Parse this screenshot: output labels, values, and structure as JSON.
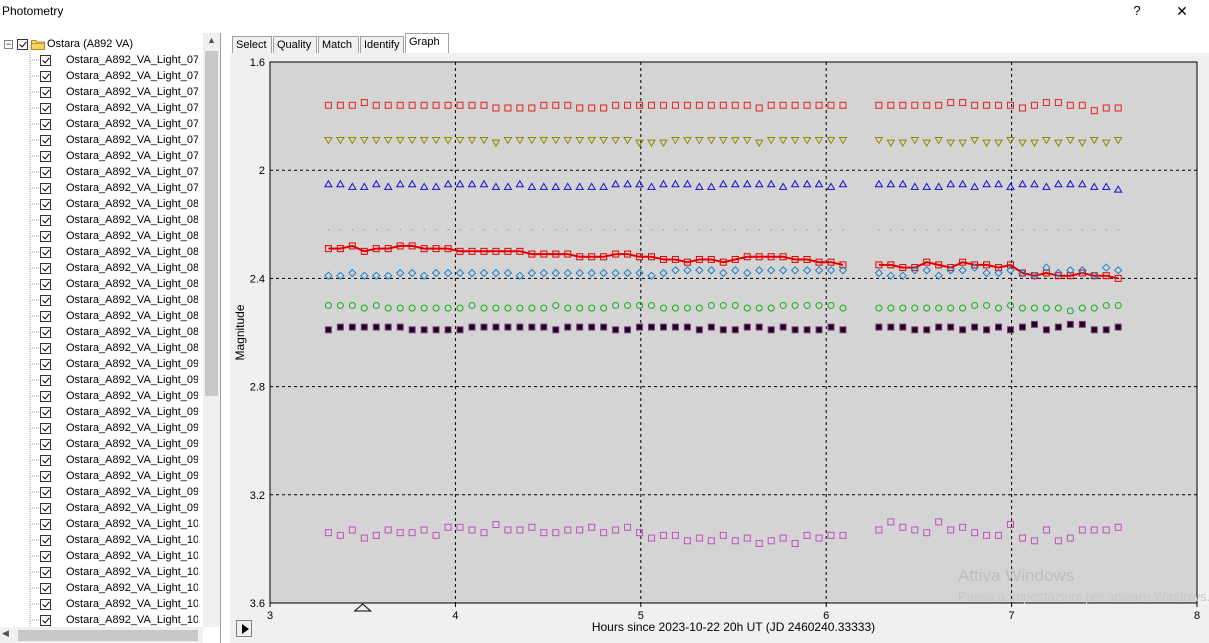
{
  "window": {
    "title": "Photometry",
    "help_label": "?",
    "close_label": "✕"
  },
  "tree": {
    "root_label": "Ostara (A892 VA)",
    "root_expander": "−",
    "items": [
      "Ostara_A892_VA_Light_07",
      "Ostara_A892_VA_Light_07",
      "Ostara_A892_VA_Light_07",
      "Ostara_A892_VA_Light_07",
      "Ostara_A892_VA_Light_07",
      "Ostara_A892_VA_Light_07",
      "Ostara_A892_VA_Light_07",
      "Ostara_A892_VA_Light_07",
      "Ostara_A892_VA_Light_07",
      "Ostara_A892_VA_Light_08",
      "Ostara_A892_VA_Light_08",
      "Ostara_A892_VA_Light_08",
      "Ostara_A892_VA_Light_08",
      "Ostara_A892_VA_Light_08",
      "Ostara_A892_VA_Light_08",
      "Ostara_A892_VA_Light_08",
      "Ostara_A892_VA_Light_08",
      "Ostara_A892_VA_Light_08",
      "Ostara_A892_VA_Light_08",
      "Ostara_A892_VA_Light_09",
      "Ostara_A892_VA_Light_09",
      "Ostara_A892_VA_Light_09",
      "Ostara_A892_VA_Light_09",
      "Ostara_A892_VA_Light_09",
      "Ostara_A892_VA_Light_09",
      "Ostara_A892_VA_Light_09",
      "Ostara_A892_VA_Light_09",
      "Ostara_A892_VA_Light_09",
      "Ostara_A892_VA_Light_09",
      "Ostara_A892_VA_Light_10",
      "Ostara_A892_VA_Light_10",
      "Ostara_A892_VA_Light_10",
      "Ostara_A892_VA_Light_10",
      "Ostara_A892_VA_Light_10",
      "Ostara_A892_VA_Light_10",
      "Ostara_A892_VA_Light_10",
      "Ostara_A892_VA_Light_10"
    ]
  },
  "tabs": [
    "Select",
    "Quality",
    "Match",
    "Identify",
    "Graph"
  ],
  "active_tab": "Graph",
  "watermark": {
    "line1": "Attiva Windows",
    "line2": "Passa a Impostazioni per attivare Windows."
  },
  "colors": {
    "plot_bg": "#d4d4d4",
    "target": "#e00000",
    "comp_red": "#e8201e",
    "comp_olive": "#8a8a00",
    "comp_blue": "#1010d0",
    "comp_cyan": "#2080c8",
    "comp_green": "#10b010",
    "comp_black": "#200020",
    "comp_violet": "#c050c0"
  },
  "chart_data": {
    "type": "scatter",
    "title": "",
    "xlabel": "Hours since 2023-10-22 20h UT (JD 2460240.33333)",
    "ylabel": "Magnitude",
    "xlim": [
      3,
      8
    ],
    "ylim": [
      1.6,
      3.6
    ],
    "y_inverted": true,
    "x_ticks": [
      "3",
      "4",
      "5",
      "6",
      "7",
      "8"
    ],
    "y_ticks": [
      "1.6",
      "2",
      "2.4",
      "2.8",
      "3.2",
      "3.6"
    ],
    "grid": true,
    "x_marker": 3.5,
    "series": [
      {
        "style": "red-square",
        "values": [
          1.76,
          1.76,
          1.76,
          1.75,
          1.76,
          1.76,
          1.76,
          1.76,
          1.76,
          1.76,
          1.76,
          1.76,
          1.76,
          1.76,
          1.77,
          1.77,
          1.77,
          1.77,
          1.76,
          1.76,
          1.76,
          1.77,
          1.77,
          1.77,
          1.76,
          1.76,
          1.76,
          1.76,
          1.76,
          1.76,
          1.76,
          1.76,
          1.76,
          1.76,
          1.76,
          1.76,
          1.77,
          1.76,
          1.76,
          1.76,
          1.76,
          1.76,
          1.76,
          1.76,
          null,
          null,
          1.76,
          1.76,
          1.76,
          1.76,
          1.76,
          1.76,
          1.75,
          1.75,
          1.76,
          1.76,
          1.76,
          1.76,
          1.77,
          1.76,
          1.75,
          1.75,
          1.76,
          1.76,
          1.78,
          1.77,
          1.77
        ]
      },
      {
        "style": "olive-triangle-down",
        "values": [
          1.89,
          1.89,
          1.89,
          1.89,
          1.89,
          1.89,
          1.89,
          1.89,
          1.89,
          1.89,
          1.89,
          1.89,
          1.89,
          1.89,
          1.9,
          1.89,
          1.89,
          1.89,
          1.89,
          1.89,
          1.89,
          1.89,
          1.89,
          1.89,
          1.89,
          1.89,
          1.9,
          1.9,
          1.9,
          1.89,
          1.89,
          1.89,
          1.89,
          1.89,
          1.89,
          1.89,
          1.9,
          1.89,
          1.89,
          1.89,
          1.89,
          1.89,
          1.89,
          1.89,
          null,
          null,
          1.89,
          1.9,
          1.9,
          1.89,
          1.9,
          1.89,
          1.9,
          1.9,
          1.89,
          1.9,
          1.9,
          1.89,
          1.9,
          1.9,
          1.89,
          1.9,
          1.89,
          1.9,
          1.89,
          1.9,
          1.89
        ]
      },
      {
        "style": "blue-triangle-up",
        "values": [
          2.05,
          2.05,
          2.06,
          2.06,
          2.05,
          2.06,
          2.05,
          2.05,
          2.06,
          2.06,
          2.05,
          2.05,
          2.05,
          2.05,
          2.06,
          2.06,
          2.05,
          2.06,
          2.06,
          2.06,
          2.06,
          2.06,
          2.06,
          2.06,
          2.05,
          2.05,
          2.05,
          2.06,
          2.05,
          2.05,
          2.05,
          2.06,
          2.06,
          2.05,
          2.05,
          2.05,
          2.05,
          2.05,
          2.06,
          2.05,
          2.05,
          2.05,
          2.06,
          2.05,
          null,
          null,
          2.05,
          2.05,
          2.05,
          2.06,
          2.06,
          2.06,
          2.05,
          2.05,
          2.06,
          2.05,
          2.05,
          2.06,
          2.05,
          2.05,
          2.06,
          2.05,
          2.05,
          2.05,
          2.06,
          2.06,
          2.07
        ]
      },
      {
        "style": "gray-dot",
        "values": [
          2.22,
          2.22,
          2.22,
          2.22,
          2.22,
          2.22,
          2.22,
          2.22,
          2.22,
          2.22,
          2.22,
          2.22,
          2.22,
          2.22,
          2.22,
          2.22,
          2.22,
          2.22,
          2.22,
          2.22,
          2.22,
          2.22,
          2.22,
          2.22,
          2.22,
          2.22,
          2.22,
          2.22,
          2.22,
          2.22,
          2.22,
          2.22,
          2.22,
          2.22,
          2.22,
          2.22,
          2.22,
          2.22,
          2.22,
          2.22,
          2.22,
          2.22,
          2.22,
          2.22,
          null,
          null,
          2.22,
          2.22,
          2.22,
          2.22,
          2.22,
          2.22,
          2.22,
          2.22,
          2.22,
          2.22,
          2.22,
          2.22,
          2.22,
          2.22,
          2.22,
          2.22,
          2.22,
          2.22,
          2.22,
          2.22,
          2.22
        ]
      },
      {
        "style": "target-red-line",
        "values": [
          2.29,
          2.29,
          2.28,
          2.3,
          2.29,
          2.29,
          2.28,
          2.28,
          2.29,
          2.29,
          2.29,
          2.3,
          2.3,
          2.3,
          2.3,
          2.3,
          2.3,
          2.31,
          2.31,
          2.31,
          2.31,
          2.32,
          2.32,
          2.32,
          2.31,
          2.31,
          2.32,
          2.32,
          2.33,
          2.33,
          2.34,
          2.33,
          2.33,
          2.34,
          2.33,
          2.32,
          2.32,
          2.32,
          2.32,
          2.33,
          2.33,
          2.34,
          2.34,
          2.35,
          null,
          null,
          2.35,
          2.35,
          2.36,
          2.36,
          2.34,
          2.35,
          2.36,
          2.34,
          2.35,
          2.35,
          2.36,
          2.35,
          2.38,
          2.39,
          2.38,
          2.39,
          2.39,
          2.38,
          2.39,
          2.39,
          2.4
        ]
      },
      {
        "style": "cyan-diamond",
        "values": [
          2.39,
          2.39,
          2.38,
          2.39,
          2.39,
          2.39,
          2.38,
          2.38,
          2.39,
          2.38,
          2.38,
          2.38,
          2.38,
          2.38,
          2.38,
          2.38,
          2.39,
          2.38,
          2.38,
          2.38,
          2.38,
          2.38,
          2.38,
          2.38,
          2.38,
          2.38,
          2.38,
          2.39,
          2.38,
          2.37,
          2.37,
          2.37,
          2.37,
          2.38,
          2.37,
          2.38,
          2.37,
          2.37,
          2.37,
          2.37,
          2.37,
          2.37,
          2.37,
          2.37,
          null,
          null,
          2.38,
          2.39,
          2.39,
          2.37,
          2.37,
          2.39,
          2.37,
          2.37,
          2.36,
          2.38,
          2.38,
          2.37,
          2.38,
          2.39,
          2.36,
          2.38,
          2.37,
          2.37,
          2.39,
          2.36,
          2.37
        ]
      },
      {
        "style": "green-circle",
        "values": [
          2.5,
          2.5,
          2.5,
          2.51,
          2.5,
          2.51,
          2.51,
          2.51,
          2.51,
          2.51,
          2.51,
          2.51,
          2.5,
          2.51,
          2.51,
          2.51,
          2.51,
          2.51,
          2.51,
          2.5,
          2.51,
          2.51,
          2.51,
          2.51,
          2.5,
          2.5,
          2.5,
          2.5,
          2.51,
          2.51,
          2.51,
          2.51,
          2.5,
          2.5,
          2.5,
          2.51,
          2.51,
          2.51,
          2.5,
          2.5,
          2.5,
          2.5,
          2.5,
          2.51,
          null,
          null,
          2.51,
          2.51,
          2.51,
          2.51,
          2.51,
          2.51,
          2.51,
          2.51,
          2.5,
          2.5,
          2.51,
          2.5,
          2.51,
          2.51,
          2.51,
          2.51,
          2.52,
          2.51,
          2.51,
          2.5,
          2.5
        ]
      },
      {
        "style": "black-square-filled",
        "values": [
          2.59,
          2.58,
          2.58,
          2.58,
          2.58,
          2.58,
          2.58,
          2.59,
          2.59,
          2.59,
          2.59,
          2.59,
          2.58,
          2.58,
          2.58,
          2.58,
          2.58,
          2.58,
          2.58,
          2.59,
          2.58,
          2.58,
          2.58,
          2.58,
          2.59,
          2.59,
          2.58,
          2.58,
          2.58,
          2.58,
          2.58,
          2.59,
          2.58,
          2.59,
          2.59,
          2.58,
          2.58,
          2.59,
          2.58,
          2.59,
          2.59,
          2.59,
          2.58,
          2.59,
          null,
          null,
          2.58,
          2.58,
          2.58,
          2.59,
          2.59,
          2.58,
          2.58,
          2.59,
          2.58,
          2.59,
          2.58,
          2.59,
          2.58,
          2.57,
          2.59,
          2.58,
          2.57,
          2.57,
          2.59,
          2.59,
          2.58
        ]
      },
      {
        "style": "violet-square",
        "values": [
          3.34,
          3.35,
          3.33,
          3.36,
          3.35,
          3.33,
          3.34,
          3.34,
          3.33,
          3.35,
          3.32,
          3.32,
          3.33,
          3.34,
          3.31,
          3.33,
          3.33,
          3.32,
          3.34,
          3.34,
          3.33,
          3.33,
          3.32,
          3.34,
          3.33,
          3.32,
          3.34,
          3.36,
          3.35,
          3.35,
          3.37,
          3.36,
          3.37,
          3.35,
          3.37,
          3.36,
          3.38,
          3.37,
          3.36,
          3.38,
          3.35,
          3.36,
          3.35,
          3.35,
          null,
          null,
          3.33,
          3.3,
          3.32,
          3.33,
          3.34,
          3.3,
          3.33,
          3.32,
          3.34,
          3.35,
          3.35,
          3.31,
          3.36,
          3.37,
          3.33,
          3.37,
          3.36,
          3.33,
          3.33,
          3.33,
          3.32
        ]
      }
    ]
  }
}
